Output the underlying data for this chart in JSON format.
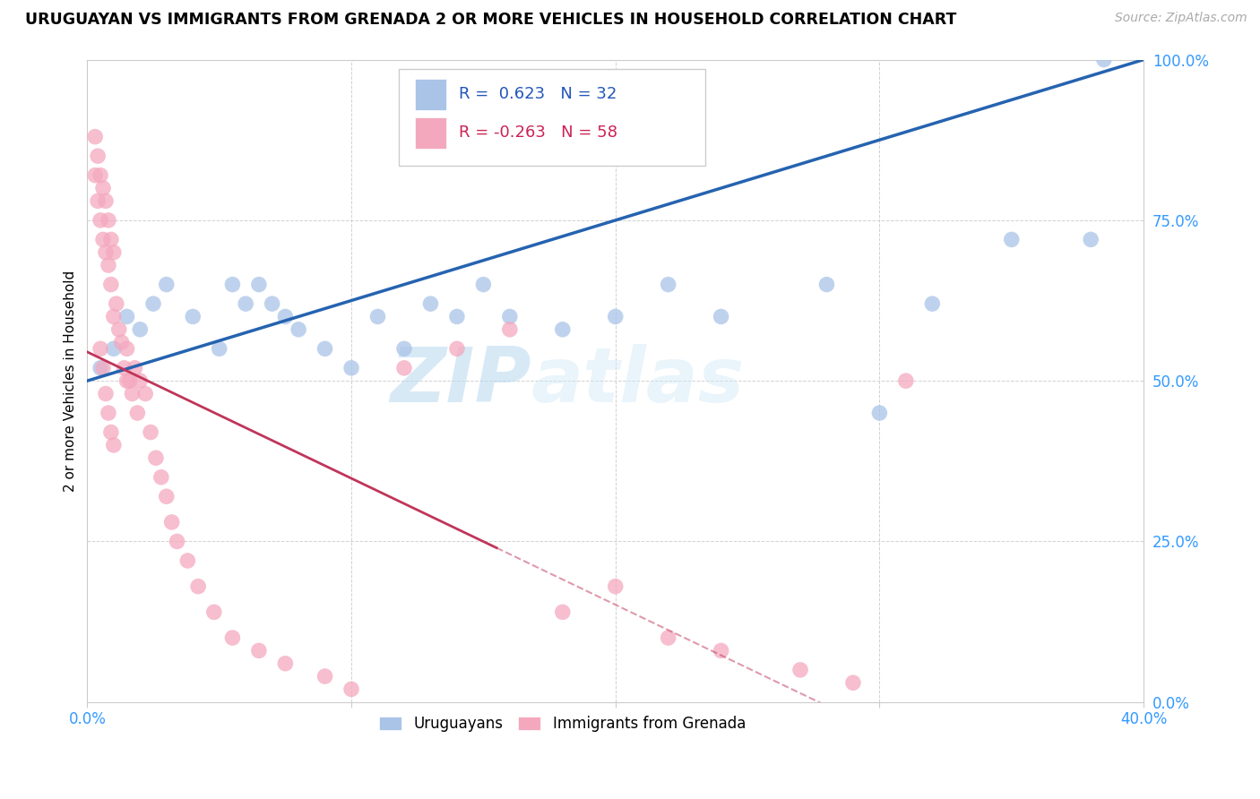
{
  "title": "URUGUAYAN VS IMMIGRANTS FROM GRENADA 2 OR MORE VEHICLES IN HOUSEHOLD CORRELATION CHART",
  "source_text": "Source: ZipAtlas.com",
  "ylabel": "2 or more Vehicles in Household",
  "xlim": [
    0.0,
    0.4
  ],
  "ylim": [
    0.0,
    1.0
  ],
  "xticks": [
    0.0,
    0.1,
    0.2,
    0.3,
    0.4
  ],
  "xtick_labels": [
    "0.0%",
    "",
    "",
    "",
    "40.0%"
  ],
  "yticks": [
    0.0,
    0.25,
    0.5,
    0.75,
    1.0
  ],
  "ytick_labels": [
    "0.0%",
    "25.0%",
    "50.0%",
    "75.0%",
    "100.0%"
  ],
  "blue_color": "#aac4e8",
  "pink_color": "#f4a8be",
  "blue_line_color": "#2563b0",
  "pink_line_color": "#c0355a",
  "blue_R": 0.623,
  "blue_N": 32,
  "pink_R": -0.263,
  "pink_N": 58,
  "legend_label_blue": "Uruguayans",
  "legend_label_pink": "Immigrants from Grenada",
  "watermark_zip": "ZIP",
  "watermark_atlas": "atlas",
  "blue_line_x0": 0.0,
  "blue_line_y0": 0.5,
  "blue_line_x1": 0.4,
  "blue_line_y1": 1.0,
  "pink_line_x0": 0.0,
  "pink_line_y0": 0.545,
  "pink_line_x1": 0.155,
  "pink_line_y1": 0.24,
  "blue_scatter_x": [
    0.005,
    0.01,
    0.015,
    0.02,
    0.025,
    0.03,
    0.04,
    0.05,
    0.055,
    0.06,
    0.065,
    0.07,
    0.075,
    0.08,
    0.09,
    0.1,
    0.11,
    0.12,
    0.13,
    0.14,
    0.15,
    0.16,
    0.18,
    0.2,
    0.22,
    0.24,
    0.28,
    0.3,
    0.32,
    0.35,
    0.38,
    0.385
  ],
  "blue_scatter_y": [
    0.52,
    0.55,
    0.6,
    0.58,
    0.62,
    0.65,
    0.6,
    0.55,
    0.65,
    0.62,
    0.65,
    0.62,
    0.6,
    0.58,
    0.55,
    0.52,
    0.6,
    0.55,
    0.62,
    0.6,
    0.65,
    0.6,
    0.58,
    0.6,
    0.65,
    0.6,
    0.65,
    0.45,
    0.62,
    0.72,
    0.72,
    1.0
  ],
  "pink_scatter_x": [
    0.003,
    0.003,
    0.004,
    0.004,
    0.005,
    0.005,
    0.006,
    0.006,
    0.007,
    0.007,
    0.008,
    0.008,
    0.009,
    0.009,
    0.01,
    0.01,
    0.011,
    0.012,
    0.013,
    0.014,
    0.015,
    0.015,
    0.016,
    0.017,
    0.018,
    0.019,
    0.02,
    0.022,
    0.024,
    0.026,
    0.028,
    0.03,
    0.032,
    0.034,
    0.038,
    0.042,
    0.048,
    0.055,
    0.065,
    0.075,
    0.09,
    0.1,
    0.12,
    0.14,
    0.16,
    0.18,
    0.2,
    0.22,
    0.24,
    0.27,
    0.29,
    0.31,
    0.005,
    0.006,
    0.007,
    0.008,
    0.009,
    0.01
  ],
  "pink_scatter_y": [
    0.88,
    0.82,
    0.85,
    0.78,
    0.82,
    0.75,
    0.8,
    0.72,
    0.78,
    0.7,
    0.75,
    0.68,
    0.72,
    0.65,
    0.7,
    0.6,
    0.62,
    0.58,
    0.56,
    0.52,
    0.5,
    0.55,
    0.5,
    0.48,
    0.52,
    0.45,
    0.5,
    0.48,
    0.42,
    0.38,
    0.35,
    0.32,
    0.28,
    0.25,
    0.22,
    0.18,
    0.14,
    0.1,
    0.08,
    0.06,
    0.04,
    0.02,
    0.52,
    0.55,
    0.58,
    0.14,
    0.18,
    0.1,
    0.08,
    0.05,
    0.03,
    0.5,
    0.55,
    0.52,
    0.48,
    0.45,
    0.42,
    0.4
  ]
}
